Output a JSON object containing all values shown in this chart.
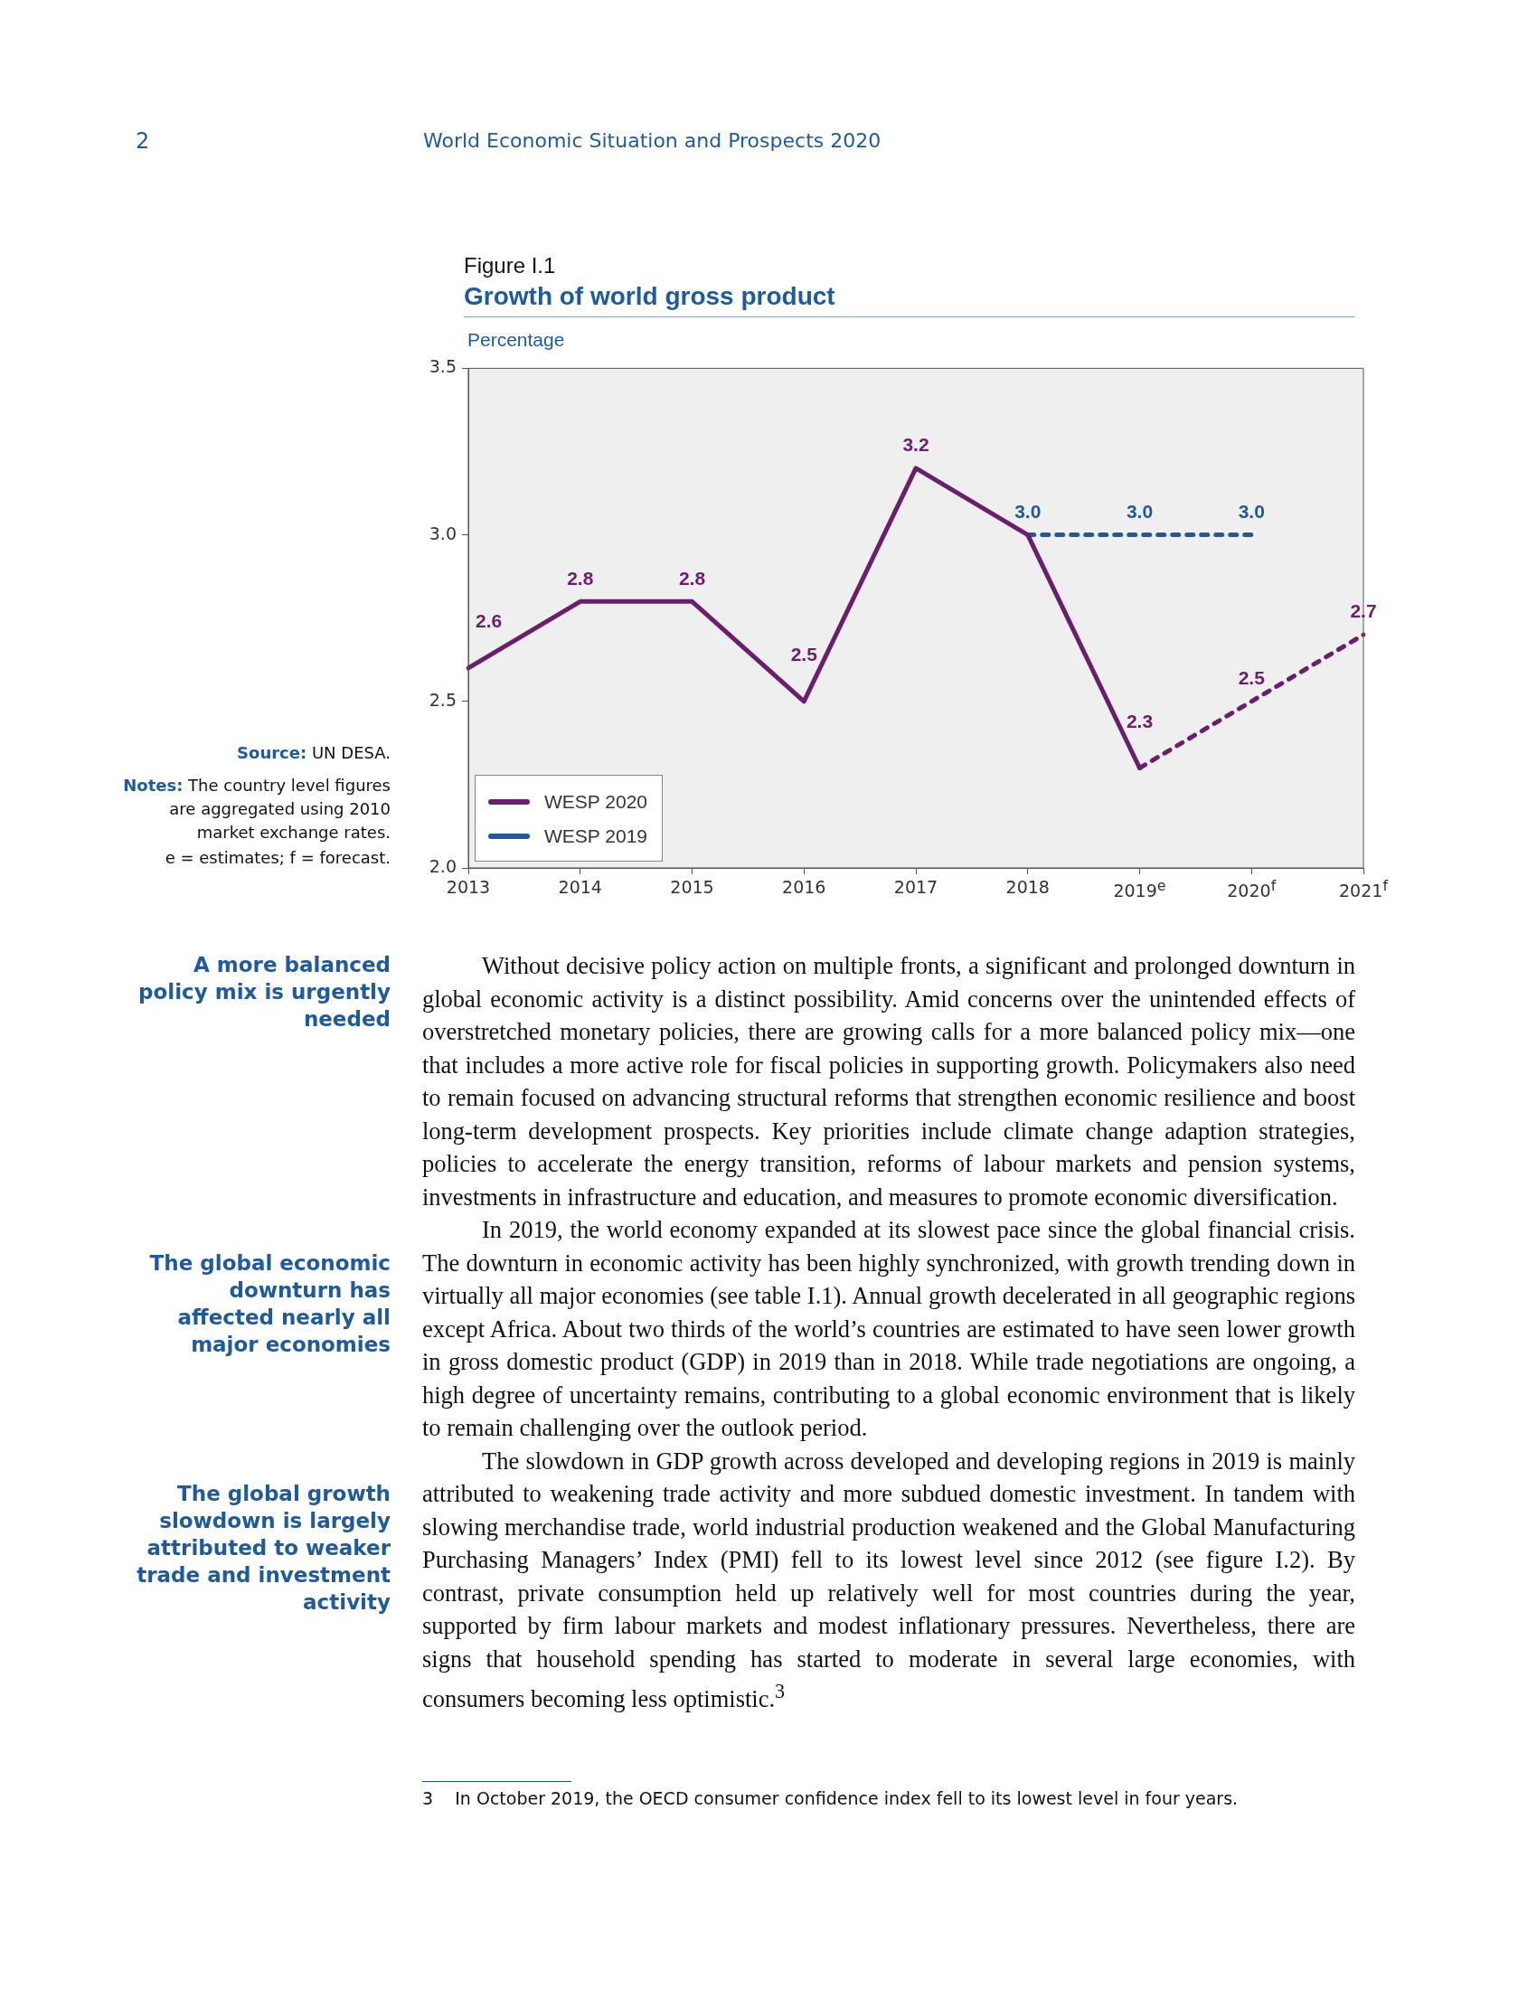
{
  "chart_data": {
    "type": "line",
    "subtitle": "Figure I.1",
    "title": "Growth of world gross product",
    "ylabel": "Percentage",
    "categories": [
      "2013",
      "2014",
      "2015",
      "2016",
      "2017",
      "2018",
      "2019$^{e}$",
      "2020$^{f}$",
      "2021$^{f}$"
    ],
    "series": [
      {
        "name": "WESP 2020",
        "color": "#6b1e6e",
        "line_style": "solid",
        "values": [
          2.6,
          2.8,
          2.8,
          2.5,
          3.2,
          3.0,
          2.3,
          null,
          null
        ],
        "value_labels": [
          "2.6",
          "2.8",
          "2.8",
          "2.5",
          "3.2",
          null,
          "2.3",
          null,
          null
        ]
      },
      {
        "color": "#6b1e6e",
        "line_style": "dashed",
        "values": [
          null,
          null,
          null,
          null,
          null,
          null,
          2.3,
          2.5,
          2.7
        ],
        "value_labels": [
          null,
          null,
          null,
          null,
          null,
          null,
          null,
          "2.5",
          "2.7"
        ]
      },
      {
        "name": "WESP 2019",
        "color": "#1f5a9a",
        "line_style": "dashed",
        "values": [
          null,
          null,
          null,
          null,
          null,
          3.0,
          3.0,
          3.0,
          null
        ],
        "value_labels": [
          null,
          null,
          null,
          null,
          null,
          "3.0",
          "3.0",
          "3.0",
          null
        ]
      }
    ],
    "ylim": [
      2.0,
      3.5
    ],
    "yticks": [
      {
        "value": 2.0,
        "label": "2.0"
      },
      {
        "value": 2.5,
        "label": "2.5"
      },
      {
        "value": 3.0,
        "label": "3.0"
      },
      {
        "value": 3.5,
        "label": "3.5"
      }
    ],
    "grid": false,
    "legend": "bottom left",
    "marker": "none",
    "annotations": [
      "2",
      "World Economic Situation and Prospects 2020",
      "Source: UN DESA.",
      "Notes: The country level figures are aggregated using 2010 market exchange rates.",
      "e = estimates; f = forecast.",
      "A more balanced policy mix is urgently needed",
      "Without decisive policy action on multiple fronts, a significant and prolonged downturn in global economic activity is a distinct possibility. Amid concerns over the unintended effects of overstretched monetary policies, there are growing calls for a more balanced policy mix—one that includes a more active role for fiscal policies in supporting growth. Policymakers also need to remain focused on advancing structural reforms that strengthen economic resilience and boost long-term development prospects. Key priorities include climate change adaption strategies, policies to accelerate the energy transition, reforms of labour markets and pension systems, investments in infrastructure and education, and measures to promote economic diversification.",
      "The global economic downturn has affected nearly all major economies",
      "In 2019, the world economy expanded at its slowest pace since the global financial crisis. The downturn in economic activity has been highly synchronized, with growth trending down in virtually all major economies (see table I.1). Annual growth decelerated in all geographic regions except Africa. About two thirds of the world’s countries are estimated to have seen lower growth in gross domestic product (GDP) in 2019 than in 2018. While trade negotiations are ongoing, a high degree of uncertainty remains, contributing to a global economic environment that is likely to remain challenging over the outlook period.",
      "The global growth slowdown is largely attributed to weaker trade and investment activity",
      "The slowdown in GDP growth across developed and developing regions in 2019 is mainly attributed to weakening trade activity and more subdued domestic investment. In tandem with slowing merchandise trade, world industrial production weakened and the Global Manufacturing Purchasing Managers’ Index (PMI) fell to its lowest level since 2012 (see figure I.2). By contrast, private consumption held up relatively well for most countries during the year, supported by firm labour markets and modest inflationary pressures. Nevertheless, there are signs that household spending has started to moderate in several large economies, with consumers becoming less optimistic.$^{3}$",
      "3    In October 2019, the OECD consumer confidence index fell to its lowest level in four years."
    ]
  }
}
